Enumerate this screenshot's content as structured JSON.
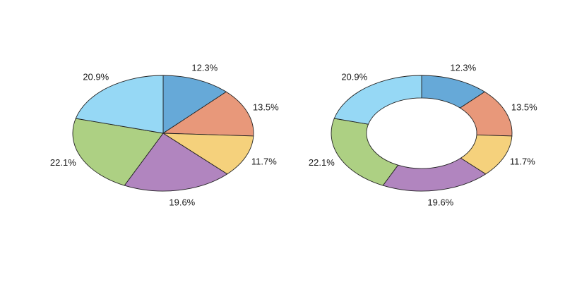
{
  "chart_data": [
    {
      "type": "pie",
      "title": "",
      "categories": [
        "",
        "",
        "",
        "",
        "",
        ""
      ],
      "values": [
        12.3,
        13.5,
        11.7,
        19.6,
        22.1,
        20.9
      ],
      "labels": [
        "12.3%",
        "13.5%",
        "11.7%",
        "19.6%",
        "22.1%",
        "20.9%"
      ],
      "colors": [
        "#66a9d8",
        "#e8987a",
        "#f5d17c",
        "#b185bf",
        "#add083",
        "#96d8f5"
      ],
      "start": "12 o'clock",
      "direction": "clockwise",
      "legend": "none"
    },
    {
      "type": "pie",
      "style": "donut",
      "title": "",
      "categories": [
        "",
        "",
        "",
        "",
        "",
        ""
      ],
      "values": [
        12.3,
        13.5,
        11.7,
        19.6,
        22.1,
        20.9
      ],
      "labels": [
        "12.3%",
        "13.5%",
        "11.7%",
        "19.6%",
        "22.1%",
        "20.9%"
      ],
      "colors": [
        "#66a9d8",
        "#e8987a",
        "#f5d17c",
        "#b185bf",
        "#add083",
        "#96d8f5"
      ],
      "start": "12 o'clock",
      "direction": "clockwise",
      "legend": "none"
    }
  ]
}
